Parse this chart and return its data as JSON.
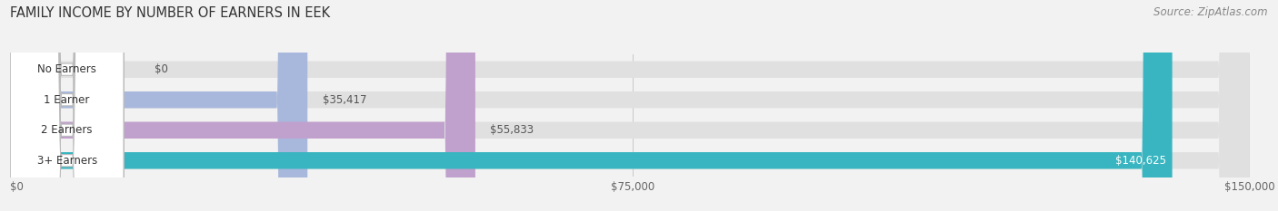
{
  "title": "FAMILY INCOME BY NUMBER OF EARNERS IN EEK",
  "source": "Source: ZipAtlas.com",
  "categories": [
    "No Earners",
    "1 Earner",
    "2 Earners",
    "3+ Earners"
  ],
  "values": [
    0,
    35417,
    55833,
    140625
  ],
  "labels": [
    "$0",
    "$35,417",
    "$55,833",
    "$140,625"
  ],
  "bar_colors": [
    "#f0a0a0",
    "#a8b8dc",
    "#c0a0cc",
    "#38b5c0"
  ],
  "label_on_bar": [
    false,
    false,
    false,
    true
  ],
  "x_ticks": [
    0,
    75000,
    150000
  ],
  "x_tick_labels": [
    "$0",
    "$75,000",
    "$150,000"
  ],
  "xlim": 150000,
  "background_color": "#f2f2f2",
  "bar_bg_color": "#e0e0e0",
  "title_fontsize": 10.5,
  "source_fontsize": 8.5,
  "bar_label_fontsize": 8.5,
  "tick_fontsize": 8.5,
  "pill_fontsize": 8.5
}
